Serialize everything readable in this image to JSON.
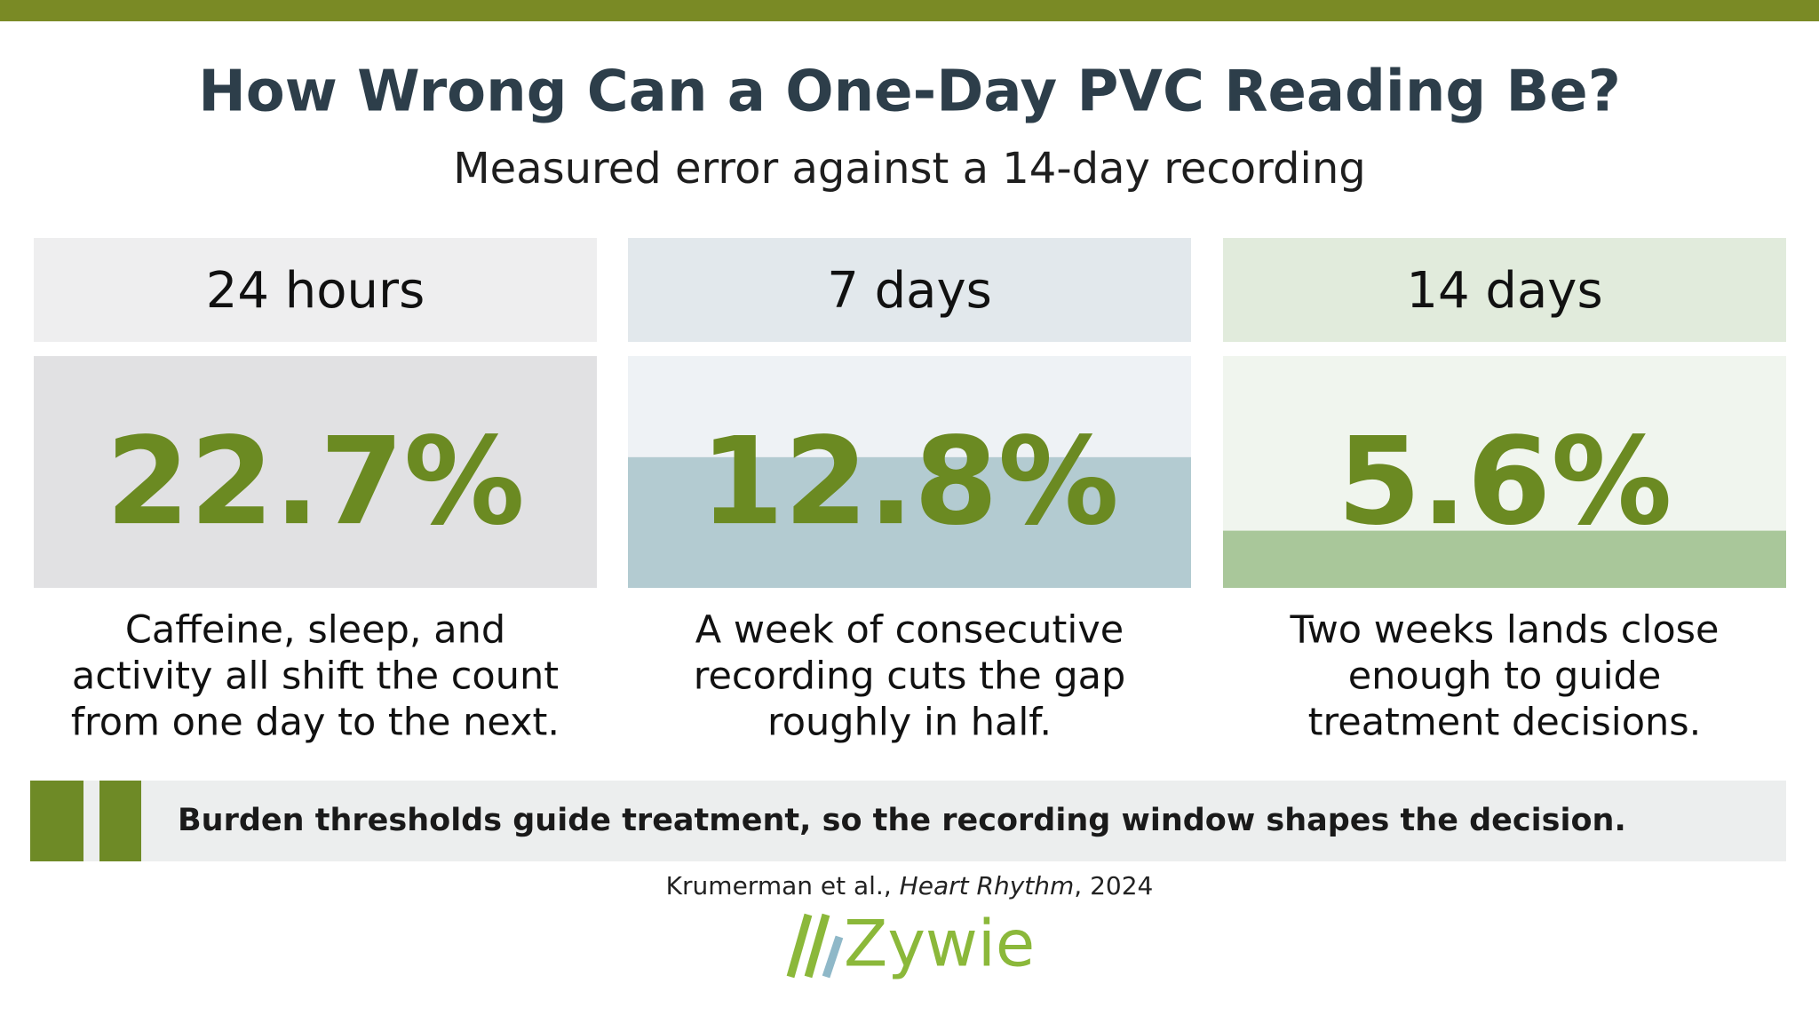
{
  "header": {
    "title": "How Wrong Can a One-Day PVC Reading Be?",
    "subtitle": "Measured error against a 14-day recording"
  },
  "cards": [
    {
      "label": "24 hours",
      "value": 22.7,
      "value_label": "22.7%",
      "color": "#e1e1e3",
      "description": [
        "Caffeine, sleep, and",
        "activity all shift the count",
        "from one day to the next."
      ]
    },
    {
      "label": "7 days",
      "value": 12.8,
      "value_label": "12.8%",
      "color": "#b3cbd1",
      "description": [
        "A week of consecutive",
        "recording cuts the gap",
        "roughly in half."
      ]
    },
    {
      "label": "14 days",
      "value": 5.6,
      "value_label": "5.6%",
      "color": "#a9c79a",
      "description": [
        "Two weeks lands close",
        "enough to guide",
        "treatment decisions."
      ]
    }
  ],
  "banner": {
    "text": "Burden thresholds guide treatment, so the recording window shapes the decision."
  },
  "citation": {
    "authors": "Krumerman et al.,",
    "journal": "Heart Rhythm",
    "year": ", 2024"
  },
  "logo": {
    "text": "Zywie"
  }
}
